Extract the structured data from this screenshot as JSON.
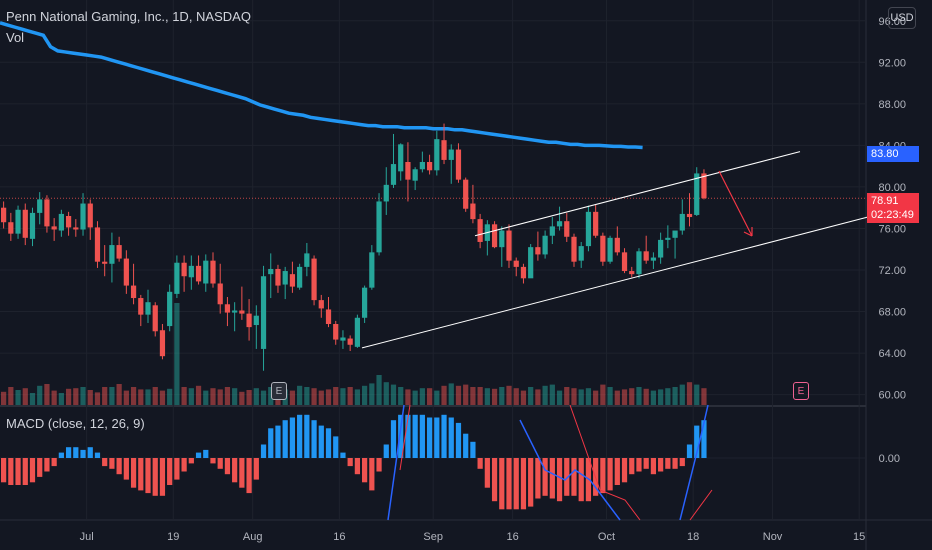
{
  "header": {
    "title": "Penn National Gaming, Inc., 1D, NASDAQ",
    "vol_label": "Vol",
    "currency": "USD"
  },
  "macd": {
    "label": "MACD (close, 12, 26, 9)",
    "zero_label": "0.00"
  },
  "price_tags": {
    "ma_value": "83.80",
    "last_price": "78.91",
    "countdown": "02:23:49"
  },
  "earnings_badge": "E",
  "colors": {
    "background": "#131722",
    "up": "#26a69a",
    "down": "#ef5350",
    "ma": "#2196f3",
    "macd_pos": "#2196f3",
    "macd_neg": "#ef5350",
    "trendline": "#ffffff",
    "arrow": "#f23645"
  },
  "chart_data": {
    "type": "candlestick",
    "symbol": "Penn National Gaming, Inc., 1D, NASDAQ",
    "y_axis": {
      "ticks": [
        "96.00",
        "92.00",
        "88.00",
        "84.00",
        "80.00",
        "76.00",
        "72.00",
        "68.00",
        "64.00",
        "60.00"
      ],
      "range": [
        59.0,
        98.0
      ]
    },
    "x_axis": {
      "ticks": [
        "Jul",
        "19",
        "Aug",
        "16",
        "Sep",
        "16",
        "Oct",
        "18",
        "Nov",
        "15"
      ]
    },
    "candles": [
      [
        78,
        78.6,
        76,
        76.6
      ],
      [
        76.6,
        77.5,
        74.8,
        75.5
      ],
      [
        75.5,
        78.2,
        75,
        77.8
      ],
      [
        77.8,
        78.4,
        74.4,
        75.1
      ],
      [
        75,
        78,
        74.3,
        77.5
      ],
      [
        77.5,
        79.5,
        76.4,
        78.8
      ],
      [
        78.8,
        79.2,
        75.6,
        76.2
      ],
      [
        76.2,
        77,
        74.8,
        75.9
      ],
      [
        75.8,
        77.8,
        75.2,
        77.4
      ],
      [
        77.2,
        77.6,
        75.3,
        76.1
      ],
      [
        76.1,
        76.9,
        75.2,
        75.9
      ],
      [
        75.9,
        79.4,
        75.3,
        78.4
      ],
      [
        78.4,
        78.8,
        74.9,
        76.1
      ],
      [
        76.1,
        76.7,
        72.2,
        72.8
      ],
      [
        72.8,
        74.4,
        71.4,
        72.6
      ],
      [
        72.6,
        75.6,
        70.8,
        74.4
      ],
      [
        74.4,
        75.2,
        72.8,
        73.1
      ],
      [
        73.1,
        73.9,
        69.7,
        70.5
      ],
      [
        70.5,
        72.6,
        68.7,
        69.3
      ],
      [
        69.3,
        69.6,
        66.6,
        67.7
      ],
      [
        67.7,
        70.1,
        66.9,
        68.9
      ],
      [
        68.6,
        68.9,
        65.6,
        66.1
      ],
      [
        66.2,
        66.8,
        63.4,
        63.7
      ],
      [
        66.6,
        70.6,
        66.1,
        69.9
      ],
      [
        69.7,
        73.4,
        69.3,
        72.7
      ],
      [
        72.7,
        73.4,
        69.9,
        71.4
      ],
      [
        71.3,
        73.4,
        70.1,
        72.4
      ],
      [
        72.4,
        73.4,
        70.6,
        70.9
      ],
      [
        70.7,
        73.5,
        69.9,
        72.9
      ],
      [
        72.9,
        73.7,
        70.3,
        70.7
      ],
      [
        70.7,
        72.6,
        67.8,
        68.7
      ],
      [
        68.7,
        69.4,
        66.6,
        67.9
      ],
      [
        67.9,
        68.9,
        66.1,
        68.1
      ],
      [
        68.1,
        70.4,
        67.2,
        67.8
      ],
      [
        67.8,
        69.2,
        65.2,
        66.5
      ],
      [
        66.7,
        68.6,
        64.4,
        67.6
      ],
      [
        64.4,
        72.4,
        62.3,
        71.4
      ],
      [
        71.6,
        73.6,
        69.3,
        72.1
      ],
      [
        72.1,
        72.5,
        69.8,
        70.5
      ],
      [
        70.6,
        72.3,
        69.2,
        71.9
      ],
      [
        71.6,
        72.8,
        69.8,
        70.4
      ],
      [
        70.3,
        72.6,
        70.1,
        72.3
      ],
      [
        72.3,
        74.6,
        71.4,
        73.6
      ],
      [
        73.1,
        73.4,
        68.6,
        69.1
      ],
      [
        69.1,
        69.6,
        67.4,
        68.3
      ],
      [
        68.2,
        69.4,
        66.5,
        66.8
      ],
      [
        66.8,
        67.1,
        64.8,
        65.3
      ],
      [
        65.2,
        66.2,
        64.4,
        65.5
      ],
      [
        65.4,
        65.7,
        64.2,
        64.8
      ],
      [
        64.6,
        67.7,
        64.5,
        67.4
      ],
      [
        67.4,
        70.5,
        66.9,
        70.3
      ],
      [
        70.3,
        74.4,
        70.1,
        73.7
      ],
      [
        73.7,
        79.4,
        73.4,
        78.6
      ],
      [
        78.6,
        81.9,
        77.3,
        80.2
      ],
      [
        80.2,
        85.1,
        79.9,
        82.2
      ],
      [
        81.5,
        84.2,
        80.6,
        84.1
      ],
      [
        82.4,
        84.3,
        78.6,
        80.7
      ],
      [
        80.6,
        81.9,
        79.7,
        81.7
      ],
      [
        81.7,
        83.4,
        81.4,
        82.4
      ],
      [
        82.4,
        83.1,
        81.2,
        81.6
      ],
      [
        81.6,
        85.4,
        81.1,
        84.6
      ],
      [
        84.5,
        86.1,
        82.2,
        82.6
      ],
      [
        82.6,
        84.1,
        80.3,
        83.6
      ],
      [
        83.6,
        84.2,
        80.4,
        80.7
      ],
      [
        80.7,
        80.9,
        77.6,
        77.9
      ],
      [
        78.4,
        80.2,
        76.5,
        76.9
      ],
      [
        76.9,
        77.4,
        74.1,
        74.7
      ],
      [
        74.8,
        76.8,
        73.4,
        76.4
      ],
      [
        76.4,
        76.7,
        74.1,
        74.2
      ],
      [
        74.2,
        76.2,
        72.3,
        75.8
      ],
      [
        75.8,
        76.4,
        72.2,
        72.9
      ],
      [
        72.9,
        73.2,
        71.4,
        72.3
      ],
      [
        72.3,
        72.6,
        70.7,
        71.2
      ],
      [
        71.2,
        74.5,
        71.3,
        74.2
      ],
      [
        74.2,
        75.7,
        72.9,
        73.5
      ],
      [
        73.5,
        75.8,
        73.1,
        75.3
      ],
      [
        75.3,
        77.1,
        74.5,
        76.2
      ],
      [
        76.2,
        78.1,
        75.8,
        76.7
      ],
      [
        76.7,
        77.5,
        74.7,
        75.2
      ],
      [
        75.2,
        75.5,
        72.3,
        72.8
      ],
      [
        72.9,
        74.7,
        72.2,
        74.3
      ],
      [
        74.3,
        78.2,
        73.8,
        77.6
      ],
      [
        77.6,
        78.3,
        75.1,
        75.3
      ],
      [
        75.3,
        75.6,
        72.4,
        72.8
      ],
      [
        72.8,
        75.3,
        72.6,
        75.1
      ],
      [
        75.1,
        76.2,
        73.4,
        73.7
      ],
      [
        73.7,
        74.1,
        71.7,
        71.9
      ],
      [
        71.9,
        72.3,
        71.3,
        71.6
      ],
      [
        71.6,
        74.1,
        71.2,
        73.8
      ],
      [
        73.8,
        75.3,
        72.6,
        72.9
      ],
      [
        72.9,
        73.7,
        72.1,
        73.2
      ],
      [
        73.2,
        75.6,
        72.6,
        74.9
      ],
      [
        74.9,
        76.3,
        74.1,
        75.1
      ],
      [
        75.1,
        75.6,
        73.1,
        75.8
      ],
      [
        75.8,
        78.8,
        75.4,
        77.4
      ],
      [
        77.4,
        79.4,
        76.2,
        77.1
      ],
      [
        77.3,
        81.9,
        77.2,
        81.3
      ],
      [
        81.3,
        81.7,
        78.8,
        78.91
      ]
    ],
    "volume_ratio": [
      0.22,
      0.3,
      0.25,
      0.28,
      0.2,
      0.32,
      0.35,
      0.24,
      0.2,
      0.27,
      0.28,
      0.3,
      0.25,
      0.21,
      0.3,
      0.3,
      0.35,
      0.24,
      0.3,
      0.26,
      0.26,
      0.3,
      0.24,
      0.27,
      1.0,
      0.3,
      0.28,
      0.32,
      0.24,
      0.28,
      0.26,
      0.3,
      0.28,
      0.22,
      0.25,
      0.28,
      0.24,
      0.3,
      0.34,
      0.26,
      0.24,
      0.32,
      0.3,
      0.28,
      0.24,
      0.26,
      0.3,
      0.28,
      0.3,
      0.26,
      0.32,
      0.36,
      0.5,
      0.38,
      0.34,
      0.3,
      0.26,
      0.24,
      0.28,
      0.28,
      0.24,
      0.32,
      0.36,
      0.32,
      0.34,
      0.3,
      0.3,
      0.28,
      0.27,
      0.3,
      0.32,
      0.28,
      0.24,
      0.3,
      0.26,
      0.32,
      0.34,
      0.24,
      0.3,
      0.28,
      0.26,
      0.28,
      0.24,
      0.34,
      0.3,
      0.24,
      0.26,
      0.28,
      0.3,
      0.27,
      0.24,
      0.26,
      0.28,
      0.3,
      0.34,
      0.38,
      0.34,
      0.28
    ],
    "moving_average": [
      95.8,
      95.6,
      95.4,
      95.2,
      95.0,
      94.8,
      94.6,
      93.5,
      93.1,
      93.0,
      92.9,
      92.8,
      92.7,
      92.6,
      92.5,
      92.3,
      92.1,
      91.9,
      91.7,
      91.5,
      91.3,
      91.1,
      90.9,
      90.7,
      90.5,
      90.3,
      90.1,
      89.9,
      89.7,
      89.5,
      89.3,
      89.1,
      88.9,
      88.7,
      88.5,
      88.2,
      87.9,
      87.7,
      87.5,
      87.3,
      87.1,
      87.0,
      86.9,
      86.7,
      86.6,
      86.5,
      86.4,
      86.3,
      86.2,
      86.1,
      86.0,
      85.9,
      85.9,
      85.8,
      85.8,
      85.8,
      85.7,
      85.7,
      85.7,
      85.7,
      85.6,
      85.6,
      85.6,
      85.5,
      85.5,
      85.4,
      85.3,
      85.2,
      85.1,
      85.0,
      84.9,
      84.8,
      84.7,
      84.6,
      84.5,
      84.4,
      84.3,
      84.3,
      84.2,
      84.1,
      84.1,
      84.0,
      84.0,
      84.0,
      83.95,
      83.9,
      83.9,
      83.85,
      83.85,
      83.8
    ],
    "macd_histogram": [
      -0.9,
      -1.0,
      -1.0,
      -1.0,
      -0.9,
      -0.7,
      -0.5,
      -0.3,
      0.2,
      0.4,
      0.4,
      0.3,
      0.4,
      0.2,
      -0.3,
      -0.4,
      -0.6,
      -0.8,
      -1.1,
      -1.2,
      -1.3,
      -1.4,
      -1.4,
      -1.0,
      -0.8,
      -0.5,
      -0.2,
      0.2,
      0.3,
      -0.2,
      -0.4,
      -0.6,
      -0.9,
      -1.1,
      -1.3,
      -0.8,
      0.5,
      1.1,
      1.2,
      1.4,
      1.5,
      1.6,
      1.6,
      1.4,
      1.2,
      1.1,
      0.8,
      0.2,
      -0.3,
      -0.6,
      -0.9,
      -1.2,
      -0.5,
      0.5,
      1.4,
      1.6,
      1.6,
      1.6,
      1.6,
      1.5,
      1.5,
      1.6,
      1.5,
      1.3,
      0.9,
      0.6,
      -0.4,
      -1.1,
      -1.6,
      -1.9,
      -1.9,
      -1.9,
      -1.9,
      -1.8,
      -1.5,
      -1.4,
      -1.5,
      -1.6,
      -1.4,
      -1.4,
      -1.6,
      -1.6,
      -1.4,
      -1.3,
      -1.2,
      -1.0,
      -0.9,
      -0.6,
      -0.5,
      -0.4,
      -0.6,
      -0.5,
      -0.4,
      -0.4,
      -0.3,
      0.5,
      1.2,
      1.4
    ],
    "trendlines": {
      "upper": [
        [
          475,
          75.3
        ],
        [
          800,
          83.4
        ]
      ],
      "lower": [
        [
          362,
          64.5
        ],
        [
          868,
          77.1
        ]
      ]
    }
  }
}
